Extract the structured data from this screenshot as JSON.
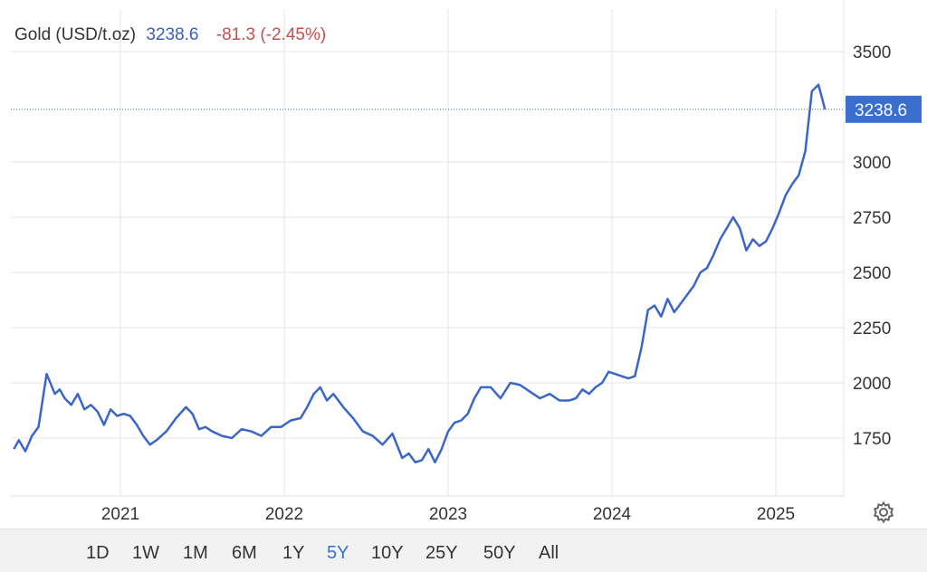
{
  "header": {
    "title": "Gold (USD/t.oz)",
    "price": "3238.6",
    "change": "-81.3 (-2.45%)"
  },
  "toolbar": {
    "ranges": [
      "1D",
      "1W",
      "1M",
      "6M",
      "1Y",
      "5Y",
      "10Y",
      "25Y",
      "50Y",
      "All"
    ],
    "active": "5Y"
  },
  "icons": {
    "settings": "gear-icon"
  },
  "colors": {
    "line": "#3a66c8",
    "price_label_bg": "#3a6fd0",
    "change": "#c0504d",
    "price": "#3a5fb5"
  },
  "chart_data": {
    "type": "line",
    "title": "Gold (USD/t.oz)",
    "ylim": [
      1500,
      3600
    ],
    "yticks": [
      1750,
      2000,
      2250,
      2500,
      2750,
      3000,
      3500
    ],
    "xticks": [
      {
        "label": "2021",
        "x": 2021.0
      },
      {
        "label": "2022",
        "x": 2022.0
      },
      {
        "label": "2023",
        "x": 2023.0
      },
      {
        "label": "2024",
        "x": 2024.0
      },
      {
        "label": "2025",
        "x": 2025.0
      }
    ],
    "xlim": [
      2020.35,
      2025.35
    ],
    "last_value": 3238.6,
    "last_value_label": "3238.6",
    "grid": true,
    "series": [
      {
        "x": [
          2020.35,
          2020.38,
          2020.42,
          2020.46,
          2020.5,
          2020.55,
          2020.6,
          2020.63,
          2020.66,
          2020.7,
          2020.74,
          2020.78,
          2020.82,
          2020.86,
          2020.9,
          2020.94,
          2020.98,
          2021.02,
          2021.06,
          2021.1,
          2021.14,
          2021.18,
          2021.22,
          2021.28,
          2021.34,
          2021.4,
          2021.44,
          2021.48,
          2021.52,
          2021.56,
          2021.62,
          2021.68,
          2021.74,
          2021.8,
          2021.86,
          2021.92,
          2021.98,
          2022.04,
          2022.1,
          2022.14,
          2022.18,
          2022.22,
          2022.26,
          2022.3,
          2022.36,
          2022.42,
          2022.48,
          2022.54,
          2022.6,
          2022.66,
          2022.72,
          2022.76,
          2022.8,
          2022.84,
          2022.88,
          2022.92,
          2022.96,
          2023.0,
          2023.04,
          2023.08,
          2023.12,
          2023.16,
          2023.2,
          2023.26,
          2023.32,
          2023.38,
          2023.44,
          2023.5,
          2023.56,
          2023.62,
          2023.68,
          2023.74,
          2023.78,
          2023.82,
          2023.86,
          2023.9,
          2023.94,
          2023.98,
          2024.02,
          2024.06,
          2024.1,
          2024.14,
          2024.18,
          2024.22,
          2024.26,
          2024.3,
          2024.34,
          2024.38,
          2024.42,
          2024.46,
          2024.5,
          2024.54,
          2024.58,
          2024.62,
          2024.66,
          2024.7,
          2024.74,
          2024.78,
          2024.82,
          2024.86,
          2024.9,
          2024.94,
          2024.98,
          2025.02,
          2025.06,
          2025.1,
          2025.14,
          2025.18,
          2025.22,
          2025.26,
          2025.3
        ],
        "y": [
          1700,
          1740,
          1690,
          1760,
          1800,
          2040,
          1950,
          1970,
          1930,
          1900,
          1950,
          1880,
          1900,
          1870,
          1810,
          1880,
          1850,
          1860,
          1850,
          1810,
          1760,
          1720,
          1740,
          1780,
          1840,
          1890,
          1860,
          1790,
          1800,
          1780,
          1760,
          1750,
          1790,
          1780,
          1760,
          1800,
          1800,
          1830,
          1840,
          1890,
          1950,
          1980,
          1920,
          1950,
          1890,
          1840,
          1780,
          1760,
          1720,
          1770,
          1660,
          1680,
          1640,
          1650,
          1700,
          1640,
          1700,
          1780,
          1820,
          1830,
          1860,
          1930,
          1980,
          1980,
          1930,
          2000,
          1990,
          1960,
          1930,
          1950,
          1920,
          1920,
          1930,
          1970,
          1950,
          1980,
          2000,
          2050,
          2040,
          2030,
          2020,
          2030,
          2160,
          2330,
          2350,
          2300,
          2380,
          2320,
          2360,
          2400,
          2440,
          2500,
          2520,
          2580,
          2650,
          2700,
          2750,
          2700,
          2600,
          2650,
          2620,
          2640,
          2700,
          2770,
          2850,
          2900,
          2940,
          3050,
          3320,
          3350,
          3238.6
        ]
      }
    ]
  }
}
